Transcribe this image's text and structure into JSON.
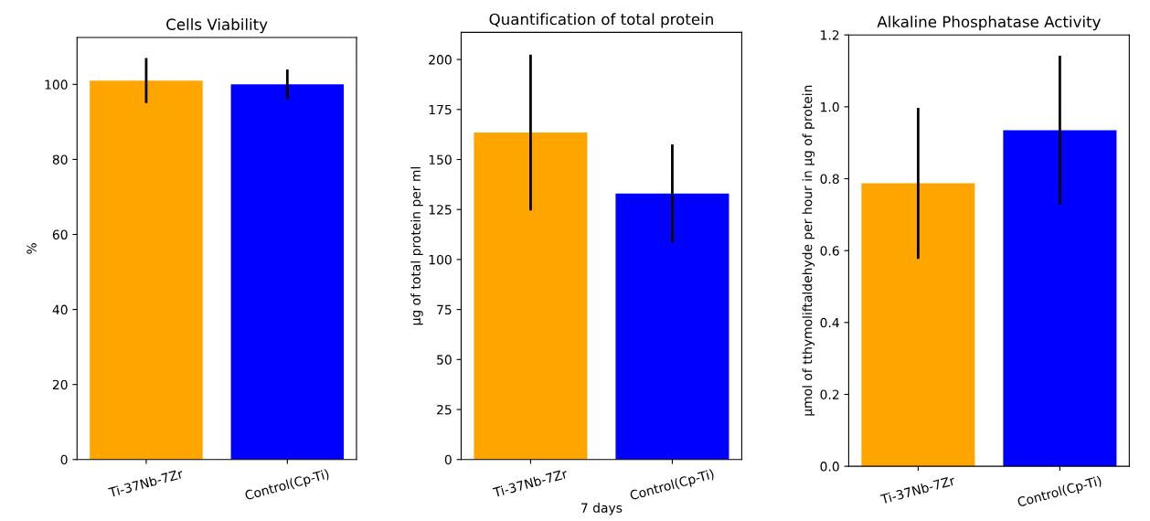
{
  "chart_data": [
    {
      "type": "bar",
      "title": "Cells Viability",
      "ylabel": "%",
      "categories": [
        "Ti-37Nb-7Zr",
        "Control(Cp-Ti)"
      ],
      "colors": [
        "#ffa500",
        "#0000ff"
      ],
      "values": [
        101,
        100
      ],
      "errors": [
        6,
        4
      ],
      "ylim": [
        0,
        112.5
      ],
      "yticks": [
        0,
        20,
        40,
        60,
        80,
        100
      ]
    },
    {
      "type": "bar",
      "title": "Quantification of total protein",
      "xlabel": "7 days",
      "ylabel": "µg of total protein per ml",
      "categories": [
        "Ti-37Nb-7Zr",
        "Control(Cp-Ti)"
      ],
      "colors": [
        "#ffa500",
        "#0000ff"
      ],
      "values": [
        163.5,
        133
      ],
      "errors": [
        39,
        24.5
      ],
      "ylim": [
        0,
        213.6
      ],
      "yticks": [
        0,
        25,
        50,
        75,
        100,
        125,
        150,
        175,
        200
      ]
    },
    {
      "type": "bar",
      "title": "Alkaline Phosphatase Activity",
      "ylabel": "µmol of tthymoliftaldehyde per hour in µg of protein",
      "categories": [
        "Ti-37Nb-7Zr",
        "Control(Cp-Ti)"
      ],
      "colors": [
        "#ffa500",
        "#0000ff"
      ],
      "values": [
        0.787,
        0.935
      ],
      "errors": [
        0.21,
        0.207
      ],
      "ylim": [
        0,
        1.2
      ],
      "yticks": [
        {
          "value": 0,
          "label": "0.0"
        },
        0.2,
        0.4,
        0.6,
        0.8,
        {
          "value": 1,
          "label": "1.0"
        },
        1.2
      ]
    }
  ]
}
